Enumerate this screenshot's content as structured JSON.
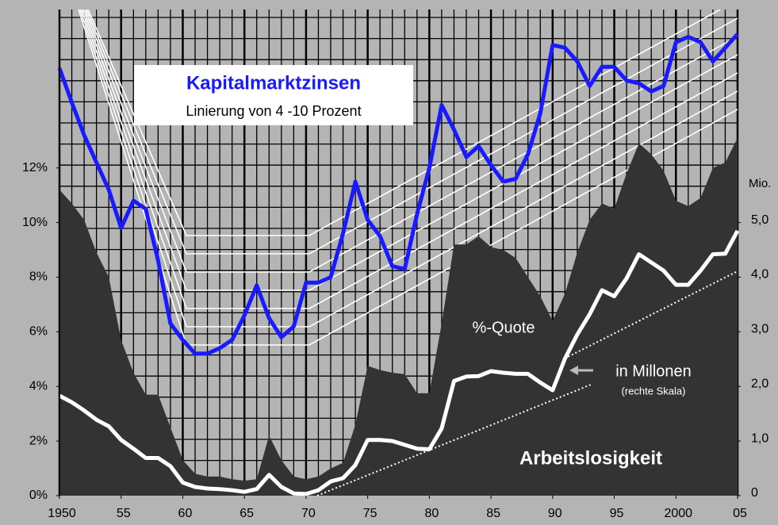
{
  "chart_data": {
    "type": "line",
    "title": "Kapitalmarktzinsen",
    "subtitle": "Linierung von 4 -10 Prozent",
    "annotations": [
      "%-Quote",
      "in Millonen",
      "(rechte Skala)",
      "Arbeitslosigkeit"
    ],
    "y2_label": "Mio.",
    "x": [
      1950,
      1951,
      1952,
      1953,
      1954,
      1955,
      1956,
      1957,
      1958,
      1959,
      1960,
      1961,
      1962,
      1963,
      1964,
      1965,
      1966,
      1967,
      1968,
      1969,
      1970,
      1971,
      1972,
      1973,
      1974,
      1975,
      1976,
      1977,
      1978,
      1979,
      1980,
      1981,
      1982,
      1983,
      1984,
      1985,
      1986,
      1987,
      1988,
      1989,
      1990,
      1991,
      1992,
      1993,
      1994,
      1995,
      1996,
      1997,
      1998,
      1999,
      2000,
      2001,
      2002,
      2003,
      2004,
      2005
    ],
    "series": [
      {
        "name": "%-Quote",
        "kind": "area",
        "color": "#333333",
        "values": [
          11.2,
          10.7,
          10.1,
          8.9,
          8.0,
          5.7,
          4.5,
          3.7,
          3.7,
          2.5,
          1.3,
          0.8,
          0.7,
          0.7,
          0.6,
          0.55,
          0.6,
          2.2,
          1.3,
          0.7,
          0.6,
          0.7,
          1.0,
          1.2,
          2.6,
          4.75,
          4.6,
          4.5,
          4.45,
          3.75,
          3.75,
          6.3,
          9.2,
          9.2,
          9.5,
          9.1,
          9.0,
          8.7,
          8.0,
          7.3,
          6.4,
          7.4,
          8.9,
          10.1,
          10.7,
          10.5,
          11.8,
          12.9,
          12.5,
          11.9,
          10.8,
          10.6,
          10.9,
          12.0,
          12.2,
          13.1
        ]
      },
      {
        "name": "Kapitalmarktzinsen",
        "kind": "line",
        "color": "#1a1aff",
        "values": [
          15.65,
          14.4,
          13.2,
          12.2,
          11.2,
          9.8,
          10.8,
          10.5,
          8.6,
          6.3,
          5.7,
          5.2,
          5.2,
          5.4,
          5.7,
          6.6,
          7.7,
          6.5,
          5.8,
          6.2,
          7.8,
          7.8,
          8.0,
          9.6,
          11.5,
          10.1,
          9.5,
          8.4,
          8.3,
          10.3,
          12.0,
          14.3,
          13.4,
          12.4,
          12.8,
          12.1,
          11.5,
          11.6,
          12.5,
          14.0,
          16.5,
          16.4,
          15.9,
          15.0,
          15.7,
          15.7,
          15.2,
          15.1,
          14.8,
          15.0,
          16.6,
          16.8,
          16.6,
          15.9,
          16.4,
          16.9
        ]
      },
      {
        "name": "in Millonen",
        "kind": "line",
        "axis": "y2",
        "color": "#ffffff",
        "values": [
          1.83,
          1.71,
          1.56,
          1.39,
          1.27,
          1.02,
          0.86,
          0.69,
          0.69,
          0.54,
          0.24,
          0.16,
          0.13,
          0.12,
          0.1,
          0.07,
          0.12,
          0.38,
          0.16,
          0.04,
          0.03,
          0.1,
          0.26,
          0.32,
          0.56,
          1.02,
          1.02,
          1.0,
          0.93,
          0.86,
          0.85,
          1.23,
          2.1,
          2.18,
          2.19,
          2.28,
          2.25,
          2.23,
          2.23,
          2.07,
          1.93,
          2.51,
          2.95,
          3.32,
          3.76,
          3.65,
          3.98,
          4.42,
          4.27,
          4.12,
          3.86,
          3.86,
          4.12,
          4.42,
          4.43,
          4.85
        ]
      }
    ],
    "xlim": [
      1950,
      2005
    ],
    "xticks": [
      1950,
      {
        "value": 1955,
        "label": "55"
      },
      {
        "value": 1960,
        "label": "60"
      },
      {
        "value": 1965,
        "label": "65"
      },
      {
        "value": 1970,
        "label": "70"
      },
      {
        "value": 1975,
        "label": "75"
      },
      {
        "value": 1980,
        "label": "80"
      },
      {
        "value": 1985,
        "label": "85"
      },
      {
        "value": 1990,
        "label": "90"
      },
      {
        "value": 1995,
        "label": "95"
      },
      2000,
      {
        "value": 2005,
        "label": "05"
      }
    ],
    "ylim": [
      0,
      17.8
    ],
    "yticks": [
      {
        "value": 0,
        "label": "0%"
      },
      {
        "value": 2,
        "label": "2%"
      },
      {
        "value": 4,
        "label": "4%"
      },
      {
        "value": 6,
        "label": "6%"
      },
      {
        "value": 8,
        "label": "8%"
      },
      {
        "value": 10,
        "label": "10%"
      },
      {
        "value": 12,
        "label": "12%"
      }
    ],
    "y2lim": [
      0,
      8.9
    ],
    "y2ticks": [
      0,
      {
        "value": 1,
        "label": "1,0"
      },
      {
        "value": 2,
        "label": "2,0"
      },
      {
        "value": 3,
        "label": "3,0"
      },
      {
        "value": 4,
        "label": "4,0"
      },
      {
        "value": 5,
        "label": "5,0"
      }
    ],
    "grid": true
  }
}
